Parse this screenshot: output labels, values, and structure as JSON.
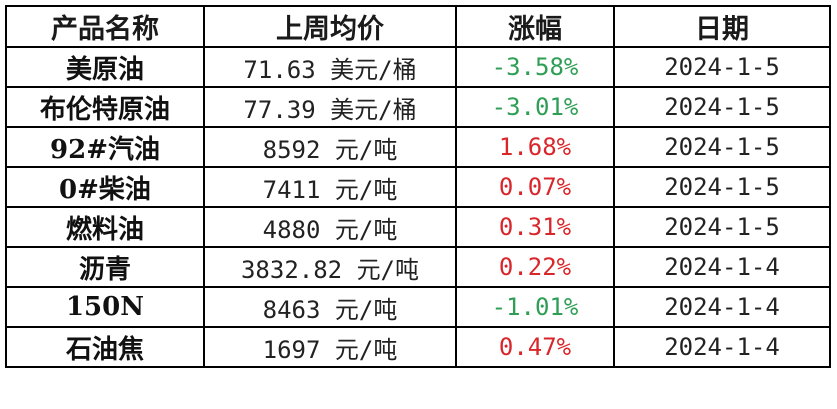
{
  "table": {
    "headers": [
      "产品名称",
      "上周均价",
      "涨幅",
      "日期"
    ],
    "rows": [
      {
        "name": "美原油",
        "price": "71.63 美元/桶",
        "change": "-3.58%",
        "direction": "down",
        "date": "2024-1-5"
      },
      {
        "name": "布伦特原油",
        "price": "77.39 美元/桶",
        "change": "-3.01%",
        "direction": "down",
        "date": "2024-1-5"
      },
      {
        "name": "92#汽油",
        "price": "8592 元/吨",
        "change": "1.68%",
        "direction": "up",
        "date": "2024-1-5"
      },
      {
        "name": "0#柴油",
        "price": "7411 元/吨",
        "change": "0.07%",
        "direction": "up",
        "date": "2024-1-5"
      },
      {
        "name": "燃料油",
        "price": "4880 元/吨",
        "change": "0.31%",
        "direction": "up",
        "date": "2024-1-5"
      },
      {
        "name": "沥青",
        "price": "3832.82 元/吨",
        "change": "0.22%",
        "direction": "up",
        "date": "2024-1-4"
      },
      {
        "name": "150N",
        "price": "8463 元/吨",
        "change": "-1.01%",
        "direction": "down",
        "date": "2024-1-4"
      },
      {
        "name": "石油焦",
        "price": "1697 元/吨",
        "change": "0.47%",
        "direction": "up",
        "date": "2024-1-4"
      }
    ]
  },
  "colors": {
    "up": "#d9262b",
    "down": "#2f9e55",
    "border": "#000000"
  }
}
